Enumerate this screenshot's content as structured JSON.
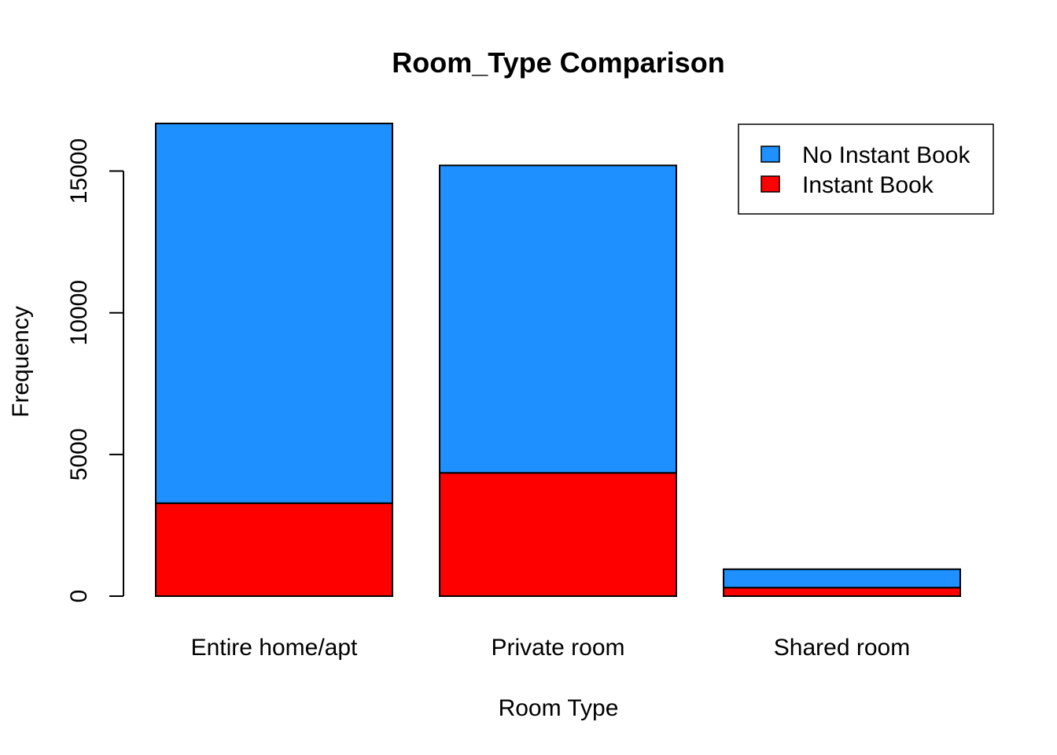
{
  "chart_data": {
    "type": "bar",
    "stacked": true,
    "title": "Room_Type Comparison",
    "xlabel": "Room Type",
    "ylabel": "Frequency",
    "categories": [
      "Entire home/apt",
      "Private room",
      "Shared room"
    ],
    "series": [
      {
        "name": "Instant Book",
        "color": "#FF0000",
        "values": [
          3280,
          4350,
          300
        ]
      },
      {
        "name": "No Instant Book",
        "color": "#1E90FF",
        "values": [
          13400,
          10850,
          650
        ]
      }
    ],
    "legend": {
      "position": "top-right",
      "entries": [
        {
          "label": "No Instant Book",
          "color": "#1E90FF"
        },
        {
          "label": "Instant Book",
          "color": "#FF0000"
        }
      ]
    },
    "yticks": [
      0,
      5000,
      10000,
      15000
    ],
    "ytick_labels": [
      "0",
      "5000",
      "10000",
      "15000"
    ],
    "ylim": [
      0,
      16680
    ],
    "grid": false
  }
}
